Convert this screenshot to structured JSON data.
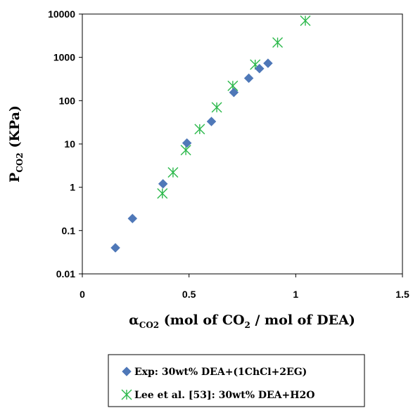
{
  "chart_data": {
    "type": "scatter",
    "title": "",
    "xlabel": {
      "prefix": "α",
      "prefix_sub": "CO2",
      "main": " (mol of CO",
      "main_sub": "2",
      "suffix": " / mol of DEA)"
    },
    "ylabel": {
      "main": "P",
      "main_sub": "CO2",
      "suffix": " (KPa)"
    },
    "xlim": [
      0,
      1.5
    ],
    "ylim": [
      0.01,
      10000
    ],
    "y_scale": "log",
    "x_ticks": [
      "0",
      "0.5",
      "1",
      "1.5"
    ],
    "x_tick_values": [
      0,
      0.5,
      1,
      1.5
    ],
    "y_ticks": [
      "0.01",
      "0.1",
      "1",
      "10",
      "100",
      "1000",
      "10000"
    ],
    "y_tick_values": [
      0.01,
      0.1,
      1,
      10,
      100,
      1000,
      10000
    ],
    "grid": false,
    "legend_position": "bottom-center",
    "series": [
      {
        "name": "Exp: 30wt% DEA+(1ChCl+2EG)",
        "marker": "diamond",
        "color": "#4F78B8",
        "points": [
          {
            "x": 0.155,
            "y": 0.04
          },
          {
            "x": 0.235,
            "y": 0.19
          },
          {
            "x": 0.378,
            "y": 1.2
          },
          {
            "x": 0.49,
            "y": 10.5
          },
          {
            "x": 0.605,
            "y": 33
          },
          {
            "x": 0.71,
            "y": 155
          },
          {
            "x": 0.78,
            "y": 330
          },
          {
            "x": 0.83,
            "y": 550
          },
          {
            "x": 0.87,
            "y": 730
          }
        ]
      },
      {
        "name": "Lee et al. [53]: 30wt% DEA+H2O",
        "marker": "asterisk",
        "color": "#2BB84A",
        "points": [
          {
            "x": 0.375,
            "y": 0.72
          },
          {
            "x": 0.425,
            "y": 2.2
          },
          {
            "x": 0.485,
            "y": 7.2
          },
          {
            "x": 0.55,
            "y": 22
          },
          {
            "x": 0.63,
            "y": 70
          },
          {
            "x": 0.705,
            "y": 220
          },
          {
            "x": 0.81,
            "y": 680
          },
          {
            "x": 0.915,
            "y": 2200
          },
          {
            "x": 1.045,
            "y": 7000
          }
        ]
      }
    ]
  }
}
